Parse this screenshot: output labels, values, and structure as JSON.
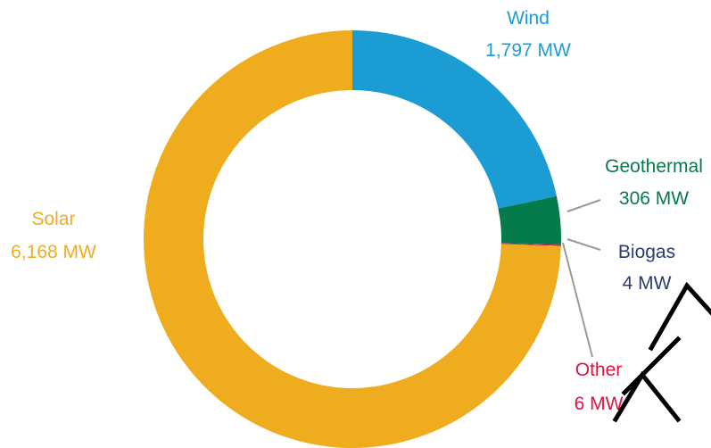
{
  "chart_data": {
    "type": "pie",
    "variant": "donut",
    "unit": "MW",
    "slices": [
      {
        "name": "Wind",
        "value": 1797,
        "value_label": "1,797 MW",
        "color": "#1b9cd3"
      },
      {
        "name": "Geothermal",
        "value": 306,
        "value_label": "306 MW",
        "color": "#057a4b"
      },
      {
        "name": "Biogas",
        "value": 4,
        "value_label": "4 MW",
        "color": "#2a3c6e"
      },
      {
        "name": "Other",
        "value": 6,
        "value_label": "6 MW",
        "color": "#e0123f"
      },
      {
        "name": "Solar",
        "value": 6168,
        "value_label": "6,168 MW",
        "color": "#f0ac1f"
      }
    ]
  }
}
